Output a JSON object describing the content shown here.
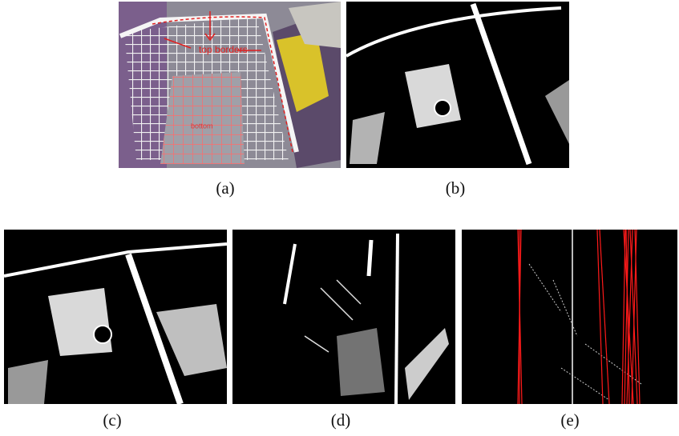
{
  "figure": {
    "panels": [
      {
        "label": "(a)",
        "annotations": [
          "top borders",
          "bottom"
        ]
      },
      {
        "label": "(b)"
      },
      {
        "label": "(c)"
      },
      {
        "label": "(d)"
      },
      {
        "label": "(e)"
      }
    ]
  }
}
